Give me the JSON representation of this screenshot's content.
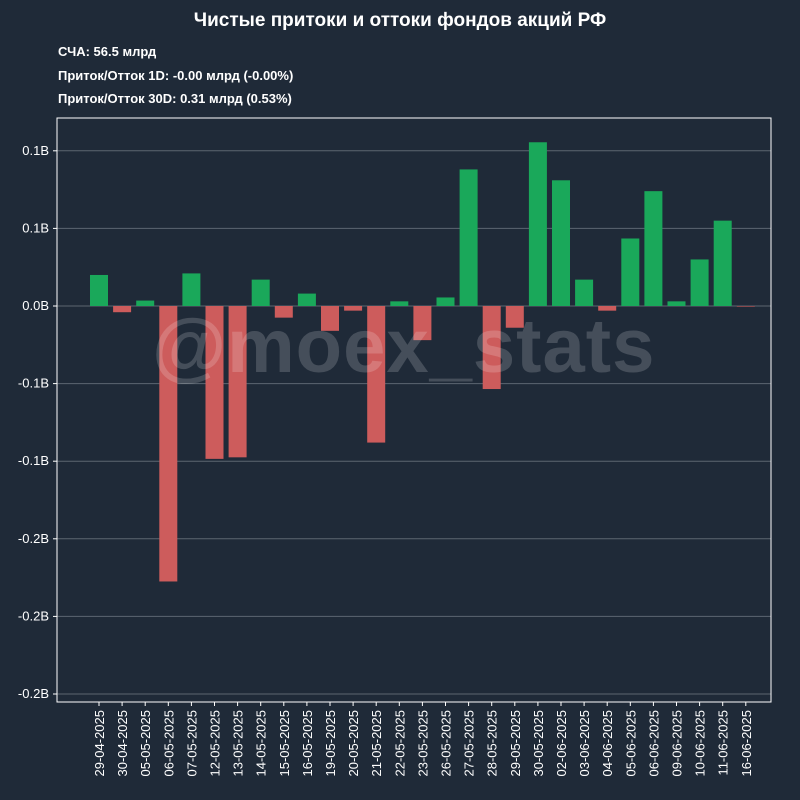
{
  "title": "Чистые притоки и оттоки фондов акций РФ",
  "info": {
    "nav_label": "СЧА:",
    "nav_value": "56.5 млрд",
    "flow1d_label": "Приток/Отток 1D:",
    "flow1d_value": "-0.00 млрд (-0.00%)",
    "flow30d_label": "Приток/Отток 30D:",
    "flow30d_value": "0.31 млрд (0.53%)"
  },
  "watermark": "@moex_stats",
  "colors": {
    "background": "#1f2a38",
    "positive": "#1aa85a",
    "negative": "#cd5c5c",
    "grid": "#5d6671"
  },
  "chart_data": {
    "type": "bar",
    "title": "Чистые притоки и оттоки фондов акций РФ",
    "xlabel": "",
    "ylabel": "",
    "ylim": [
      -0.25,
      0.122
    ],
    "grid": true,
    "yticks": [
      {
        "value": 0.1,
        "label": "0.1B"
      },
      {
        "value": 0.05,
        "label": "0.1B"
      },
      {
        "value": 0.0,
        "label": "0.0B"
      },
      {
        "value": -0.05,
        "label": "-0.1B"
      },
      {
        "value": -0.1,
        "label": "-0.1B"
      },
      {
        "value": -0.15,
        "label": "-0.2B"
      },
      {
        "value": -0.2,
        "label": "-0.2B"
      },
      {
        "value": -0.25,
        "label": "-0.2B"
      }
    ],
    "categories": [
      "29-04-2025",
      "30-04-2025",
      "05-05-2025",
      "06-05-2025",
      "07-05-2025",
      "12-05-2025",
      "13-05-2025",
      "14-05-2025",
      "15-05-2025",
      "16-05-2025",
      "19-05-2025",
      "20-05-2025",
      "21-05-2025",
      "22-05-2025",
      "23-05-2025",
      "26-05-2025",
      "27-05-2025",
      "28-05-2025",
      "29-05-2025",
      "30-05-2025",
      "02-06-2025",
      "03-06-2025",
      "04-06-2025",
      "05-06-2025",
      "06-06-2025",
      "09-06-2025",
      "10-06-2025",
      "11-06-2025",
      "16-06-2025"
    ],
    "values": [
      0.02,
      -0.004,
      0.0035,
      -0.1775,
      0.021,
      -0.0985,
      -0.0975,
      0.017,
      -0.0075,
      0.008,
      -0.016,
      -0.003,
      -0.088,
      0.003,
      -0.022,
      0.0055,
      0.088,
      -0.0535,
      -0.014,
      0.1055,
      0.081,
      0.017,
      -0.003,
      0.0435,
      0.074,
      0.003,
      0.03,
      0.055,
      -0.0003
    ]
  }
}
